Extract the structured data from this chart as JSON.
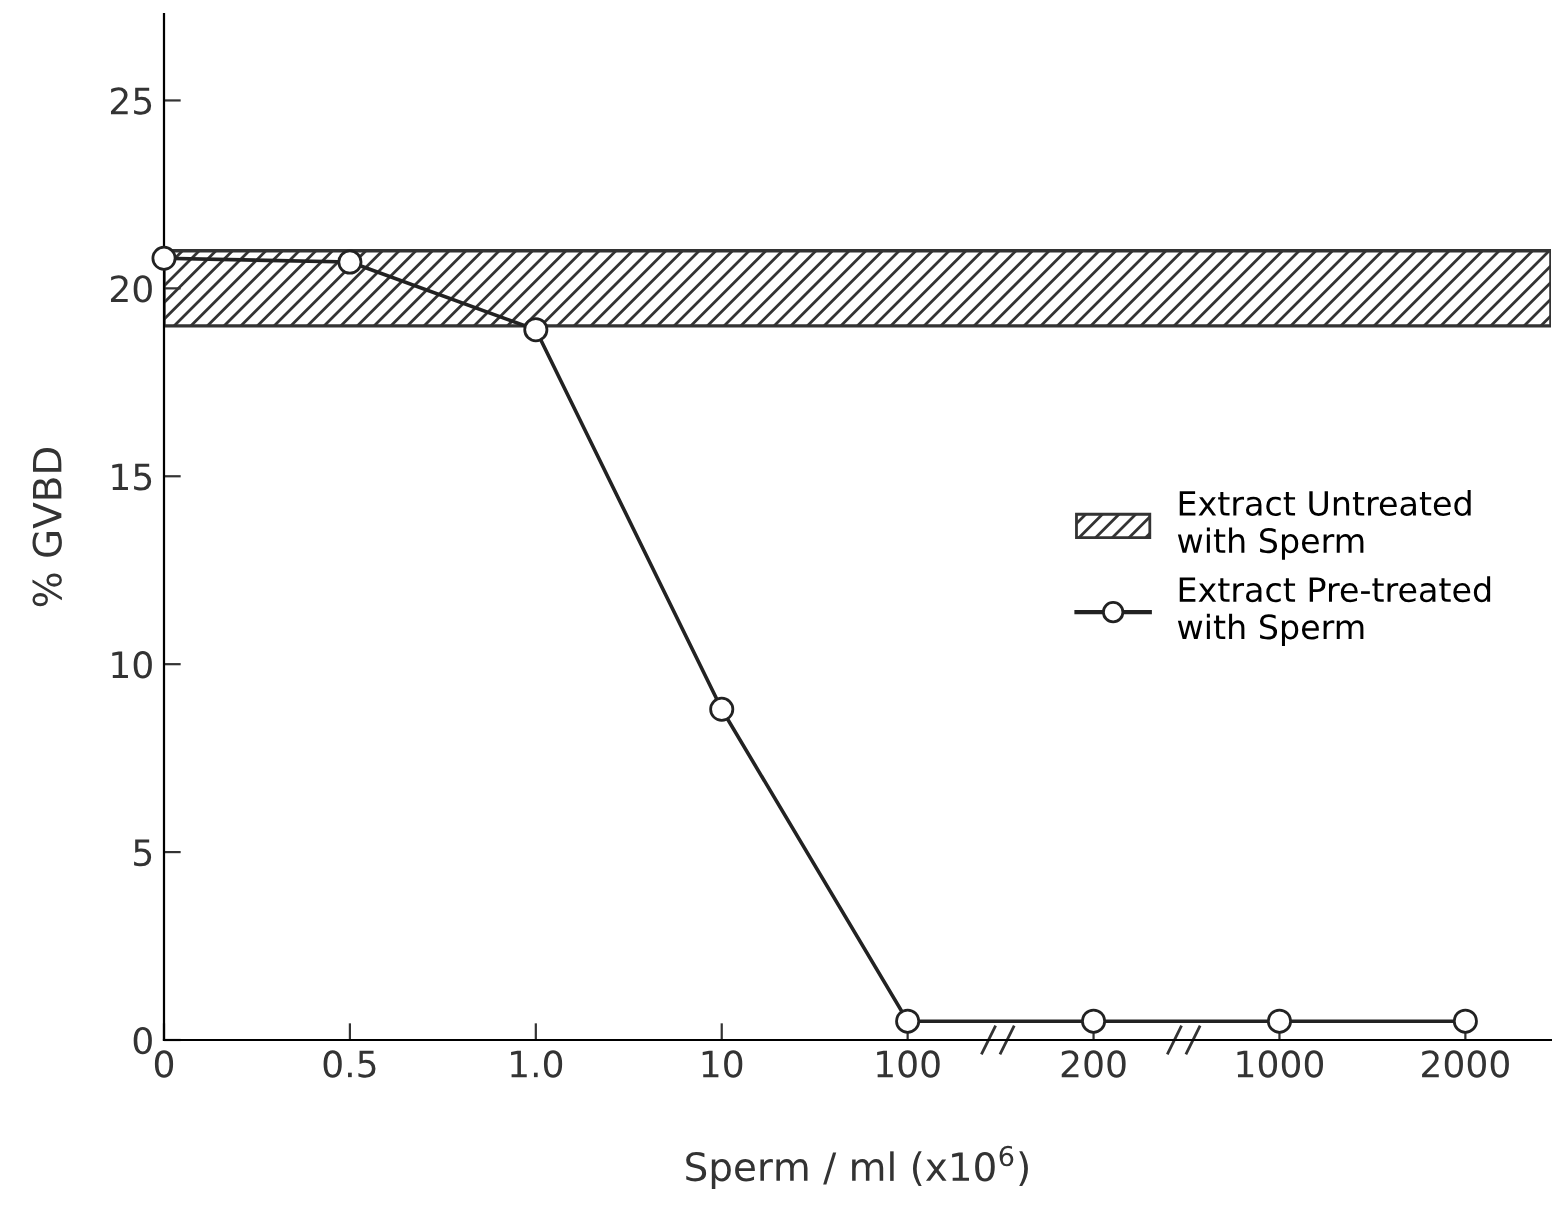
{
  "chart_data": {
    "type": "line",
    "xlabel": "Sperm / ml (x10$^{6}$)",
    "ylabel": "% GVBD",
    "categories": [
      "0",
      "0.5",
      "1.0",
      "10",
      "100",
      "200",
      "1000",
      "2000"
    ],
    "series": [
      {
        "name": "Extract Pre-treated\nwith Sperm",
        "color": "#222222",
        "values": [
          20.8,
          20.7,
          18.9,
          8.8,
          0.5,
          0.5,
          0.5,
          0.5
        ]
      }
    ],
    "bands": [
      {
        "axis": "y",
        "from": 19,
        "to": 21,
        "label": "Extract Untreated\nwith Sperm",
        "color": "#333333"
      }
    ],
    "ylim": [
      0,
      27.3
    ],
    "yticks": [
      0,
      5,
      10,
      15,
      20,
      25
    ],
    "marker": "circle",
    "line_style": "solid",
    "legend": "right",
    "grid": false
  }
}
